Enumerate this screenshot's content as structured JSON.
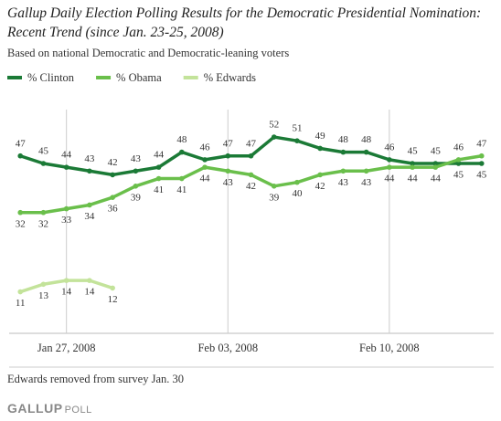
{
  "chart_data": {
    "type": "line",
    "title": [
      "Gallup Daily Election Polling Results for the Democratic Presidential Nomination:",
      "Recent Trend (since Jan. 23-25, 2008)"
    ],
    "subtitle": "Based on national Democratic and Democratic-leaning voters",
    "x": [
      "2008-01-25",
      "2008-01-26",
      "2008-01-27",
      "2008-01-28",
      "2008-01-29",
      "2008-01-30",
      "2008-01-31",
      "2008-02-01",
      "2008-02-02",
      "2008-02-03",
      "2008-02-04",
      "2008-02-05",
      "2008-02-06",
      "2008-02-07",
      "2008-02-08",
      "2008-02-09",
      "2008-02-10",
      "2008-02-11",
      "2008-02-12",
      "2008-02-13",
      "2008-02-14"
    ],
    "series": [
      {
        "name": "% Clinton",
        "color": "#1b7a36",
        "values": [
          47,
          45,
          44,
          43,
          42,
          43,
          44,
          48,
          46,
          47,
          47,
          52,
          51,
          49,
          48,
          48,
          46,
          45,
          45,
          45,
          45
        ]
      },
      {
        "name": "% Obama",
        "color": "#6abf4b",
        "values": [
          32,
          32,
          33,
          34,
          36,
          39,
          41,
          41,
          44,
          43,
          42,
          39,
          40,
          42,
          43,
          43,
          44,
          44,
          44,
          46,
          47
        ]
      },
      {
        "name": "% Edwards",
        "color": "#c3e39a",
        "values": [
          11,
          13,
          14,
          14,
          12,
          null,
          null,
          null,
          null,
          null,
          null,
          null,
          null,
          null,
          null,
          null,
          null,
          null,
          null,
          null,
          null
        ]
      }
    ],
    "xlim": [
      "2008-01-24",
      "2008-02-15"
    ],
    "xticks": [
      {
        "value": "2008-01-27",
        "label": "Jan 27, 2008"
      },
      {
        "value": "2008-02-03",
        "label": "Feb 03, 2008"
      },
      {
        "value": "2008-02-10",
        "label": "Feb 10, 2008"
      }
    ],
    "ylim": [
      0,
      60
    ],
    "note": "Edwards removed from survey Jan. 30",
    "logo": [
      "GALLUP",
      "POLL"
    ]
  }
}
